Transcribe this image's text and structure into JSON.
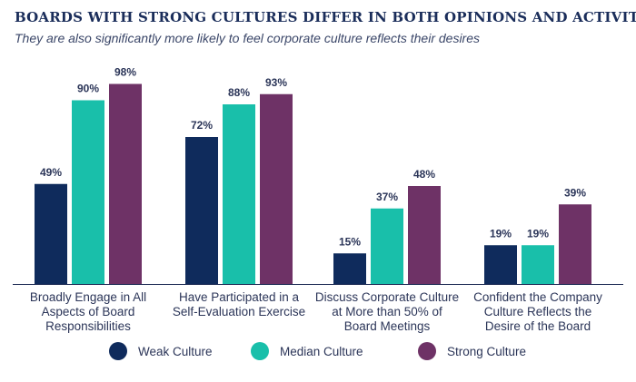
{
  "chart_data": {
    "type": "bar",
    "title": "BOARDS WITH STRONG CULTURES DIFFER IN BOTH OPINIONS AND ACTIVITIES",
    "subtitle": "They are also significantly more likely to feel corporate culture reflects their desires",
    "categories": [
      [
        "Broadly Engage in All",
        "Aspects of Board",
        "Responsibilities"
      ],
      [
        "Have Participated in a",
        "Self-Evaluation Exercise"
      ],
      [
        "Discuss Corporate Culture",
        "at More than 50% of",
        "Board Meetings"
      ],
      [
        "Confident the Company",
        "Culture Reflects the",
        "Desire of the Board"
      ]
    ],
    "series": [
      {
        "name": "Weak Culture",
        "color": "#0f2b5c",
        "values": [
          49,
          72,
          15,
          19
        ]
      },
      {
        "name": "Median Culture",
        "color": "#19bfaa",
        "values": [
          90,
          88,
          37,
          19
        ]
      },
      {
        "name": "Strong Culture",
        "color": "#6e3266",
        "values": [
          98,
          93,
          48,
          39
        ]
      }
    ],
    "value_suffix": "%",
    "ylim": [
      0,
      100
    ],
    "grid": false,
    "legend_position": "bottom"
  }
}
